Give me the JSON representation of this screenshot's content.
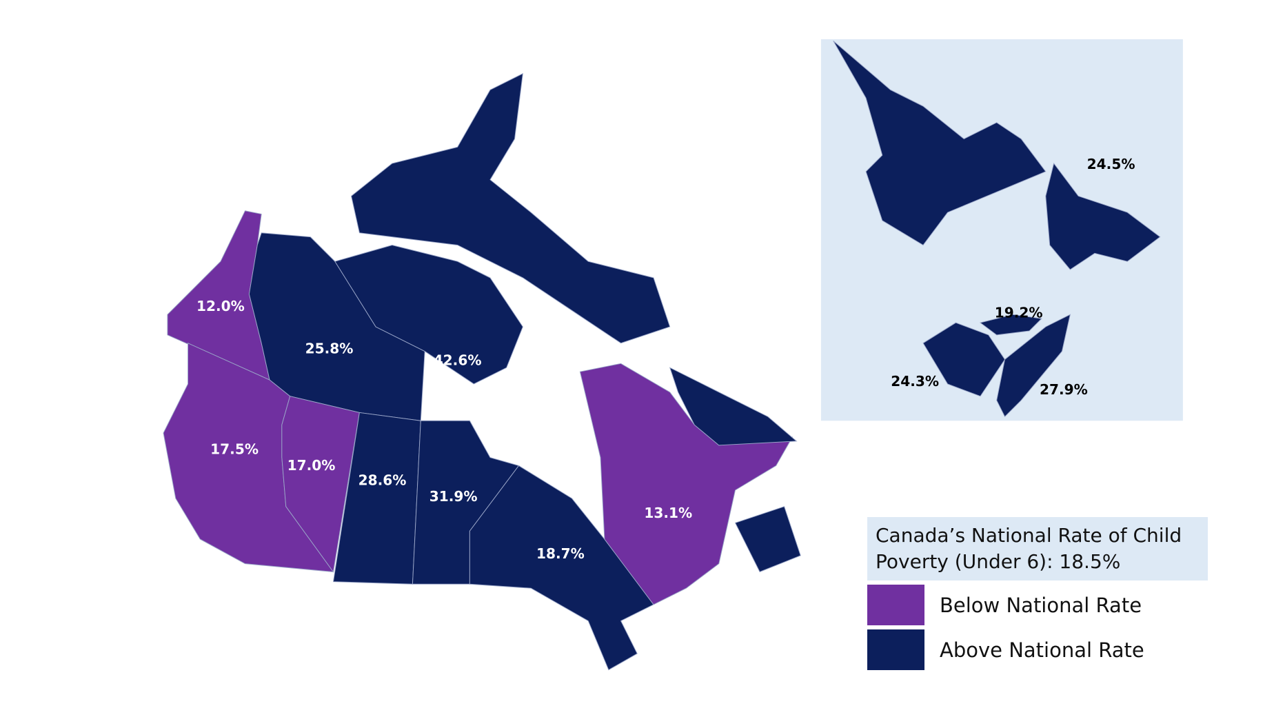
{
  "regions": [
    {
      "label": "12.0%",
      "color": "#7030a0"
    },
    {
      "label": "25.8%",
      "color": "#0c1f5c"
    },
    {
      "label": "42.6%",
      "color": "#0c1f5c"
    },
    {
      "label": "17.5%",
      "color": "#7030a0"
    },
    {
      "label": "17.0%",
      "color": "#7030a0"
    },
    {
      "label": "28.6%",
      "color": "#0c1f5c"
    },
    {
      "label": "31.9%",
      "color": "#0c1f5c"
    },
    {
      "label": "18.7%",
      "color": "#0c1f5c"
    },
    {
      "label": "13.1%",
      "color": "#7030a0"
    },
    {
      "label": "24.5%",
      "color": "#0c1f5c"
    },
    {
      "label": "19.2%",
      "color": "#0c1f5c"
    },
    {
      "label": "24.3%",
      "color": "#0c1f5c"
    },
    {
      "label": "27.9%",
      "color": "#0c1f5c"
    }
  ],
  "legend": {
    "title": "Canada’s National Rate of Child Poverty (Under 6): 18.5%",
    "items": [
      {
        "label": "Below National Rate",
        "color": "#7030a0"
      },
      {
        "label": "Above National Rate",
        "color": "#0c1f5c"
      }
    ]
  }
}
